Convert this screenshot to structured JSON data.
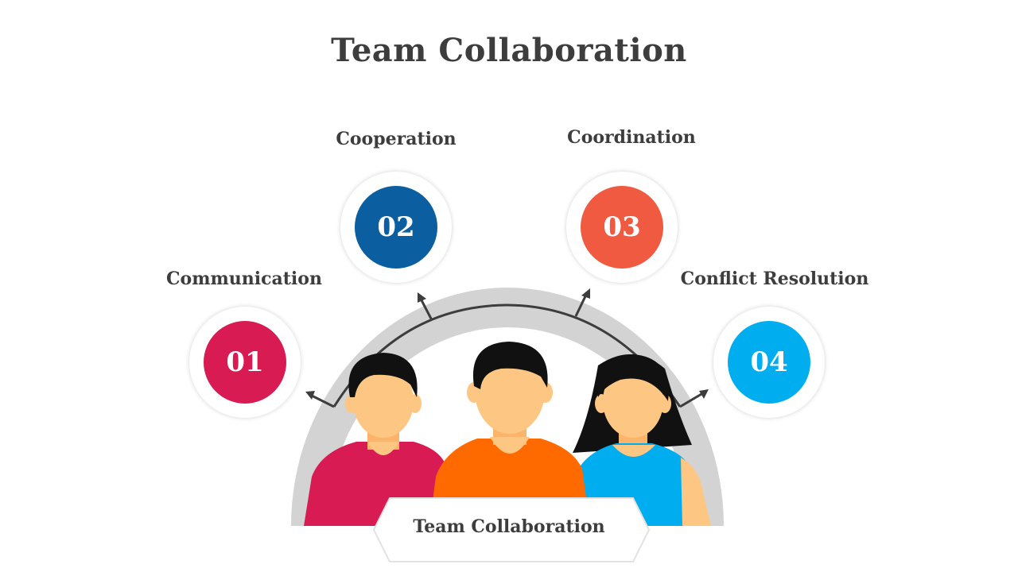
{
  "title": "Team Collaboration",
  "center_label": "Team Collaboration",
  "steps": [
    {
      "number": "01",
      "label": "Communication",
      "color": "#d81b52"
    },
    {
      "number": "02",
      "label": "Cooperation",
      "color": "#0b5ea0"
    },
    {
      "number": "03",
      "label": "Coordination",
      "color": "#f05a40"
    },
    {
      "number": "04",
      "label": "Conflict Resolution",
      "color": "#00aeef"
    }
  ],
  "people_colors": {
    "left_shirt": "#d81b52",
    "center_shirt": "#ff6a00",
    "right_shirt": "#00aeef",
    "skin": "#fdc682",
    "hair": "#111111"
  }
}
